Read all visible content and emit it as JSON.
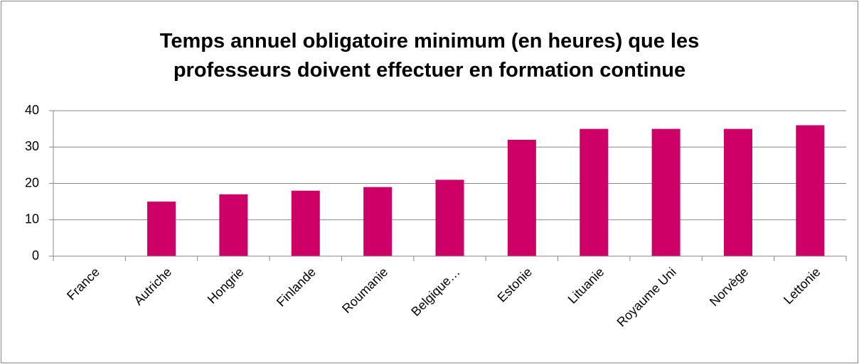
{
  "chart_data": {
    "type": "bar",
    "title": "Temps annuel obligatoire minimum (en heures) que les professeurs doivent effectuer en formation continue",
    "categories": [
      "France",
      "Autriche",
      "Hongrie",
      "Finlande",
      "Roumanie",
      "Belgique…",
      "Estonie",
      "Lituanie",
      "Royaume Uni",
      "Norvège",
      "Lettonie"
    ],
    "values": [
      0,
      15,
      17,
      18,
      19,
      21,
      32,
      35,
      35,
      35,
      36
    ],
    "color": "#cc0066",
    "ylim": [
      0,
      40
    ],
    "yticks": [
      0,
      10,
      20,
      30,
      40
    ],
    "grid": true
  }
}
